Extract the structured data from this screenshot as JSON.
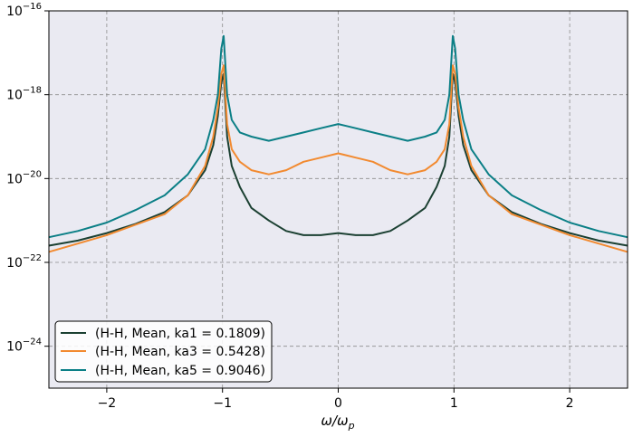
{
  "chart_data": {
    "type": "line",
    "title": "",
    "xlabel": "ω/ω",
    "xlabel_sub": "p",
    "ylabel": "",
    "xlim": [
      -2.5,
      2.5
    ],
    "ylim_exp": [
      -25.0,
      -16.0
    ],
    "yscale": "log",
    "grid": true,
    "legend_position": "lower-left",
    "x_ticks": [
      {
        "value": -2,
        "label": "−2"
      },
      {
        "value": -1,
        "label": "−1"
      },
      {
        "value": 0,
        "label": "0"
      },
      {
        "value": 1,
        "label": "1"
      },
      {
        "value": 2,
        "label": "2"
      }
    ],
    "y_ticks": [
      {
        "exp": -16,
        "base": "10",
        "sup": "−16"
      },
      {
        "exp": -18,
        "base": "10",
        "sup": "−18"
      },
      {
        "exp": -20,
        "base": "10",
        "sup": "−20"
      },
      {
        "exp": -22,
        "base": "10",
        "sup": "−22"
      },
      {
        "exp": -24,
        "base": "10",
        "sup": "−24"
      }
    ],
    "x": [
      -2.5,
      -2.25,
      -2.0,
      -1.75,
      -1.5,
      -1.3,
      -1.15,
      -1.08,
      -1.04,
      -1.01,
      -0.99,
      -0.96,
      -0.92,
      -0.85,
      -0.75,
      -0.6,
      -0.45,
      -0.3,
      -0.15,
      0.0,
      0.15,
      0.3,
      0.45,
      0.6,
      0.75,
      0.85,
      0.92,
      0.96,
      0.99,
      1.01,
      1.04,
      1.08,
      1.15,
      1.3,
      1.5,
      1.75,
      2.0,
      2.25,
      2.5
    ],
    "series": [
      {
        "name": "(H-H, Mean, ka1 = 0.1809)",
        "color": "#1b4032",
        "log10_values": [
          -21.6,
          -21.48,
          -21.3,
          -21.08,
          -20.8,
          -20.4,
          -19.8,
          -19.2,
          -18.5,
          -17.7,
          -17.5,
          -19.0,
          -19.7,
          -20.2,
          -20.7,
          -21.0,
          -21.25,
          -21.35,
          -21.35,
          -21.3,
          -21.35,
          -21.35,
          -21.25,
          -21.0,
          -20.7,
          -20.2,
          -19.7,
          -19.0,
          -17.5,
          -17.7,
          -18.5,
          -19.2,
          -19.8,
          -20.4,
          -20.8,
          -21.08,
          -21.3,
          -21.48,
          -21.6
        ]
      },
      {
        "name": "(H-H, Mean, ka3 = 0.5428)",
        "color": "#f28a30",
        "log10_values": [
          -21.75,
          -21.55,
          -21.35,
          -21.1,
          -20.85,
          -20.4,
          -19.7,
          -19.0,
          -18.3,
          -17.5,
          -17.3,
          -18.7,
          -19.3,
          -19.6,
          -19.8,
          -19.9,
          -19.8,
          -19.6,
          -19.5,
          -19.4,
          -19.5,
          -19.6,
          -19.8,
          -19.9,
          -19.8,
          -19.6,
          -19.3,
          -18.7,
          -17.3,
          -17.5,
          -18.3,
          -19.0,
          -19.7,
          -20.4,
          -20.85,
          -21.1,
          -21.35,
          -21.55,
          -21.75
        ]
      },
      {
        "name": "(H-H, Mean, ka5 = 0.9046)",
        "color": "#0b7f86",
        "log10_values": [
          -21.4,
          -21.25,
          -21.05,
          -20.75,
          -20.4,
          -19.9,
          -19.3,
          -18.6,
          -18.0,
          -16.9,
          -16.6,
          -18.0,
          -18.6,
          -18.9,
          -19.0,
          -19.1,
          -19.0,
          -18.9,
          -18.8,
          -18.7,
          -18.8,
          -18.9,
          -19.0,
          -19.1,
          -19.0,
          -18.9,
          -18.6,
          -18.0,
          -16.6,
          -16.9,
          -18.0,
          -18.6,
          -19.3,
          -19.9,
          -20.4,
          -20.75,
          -21.05,
          -21.25,
          -21.4
        ]
      }
    ]
  }
}
